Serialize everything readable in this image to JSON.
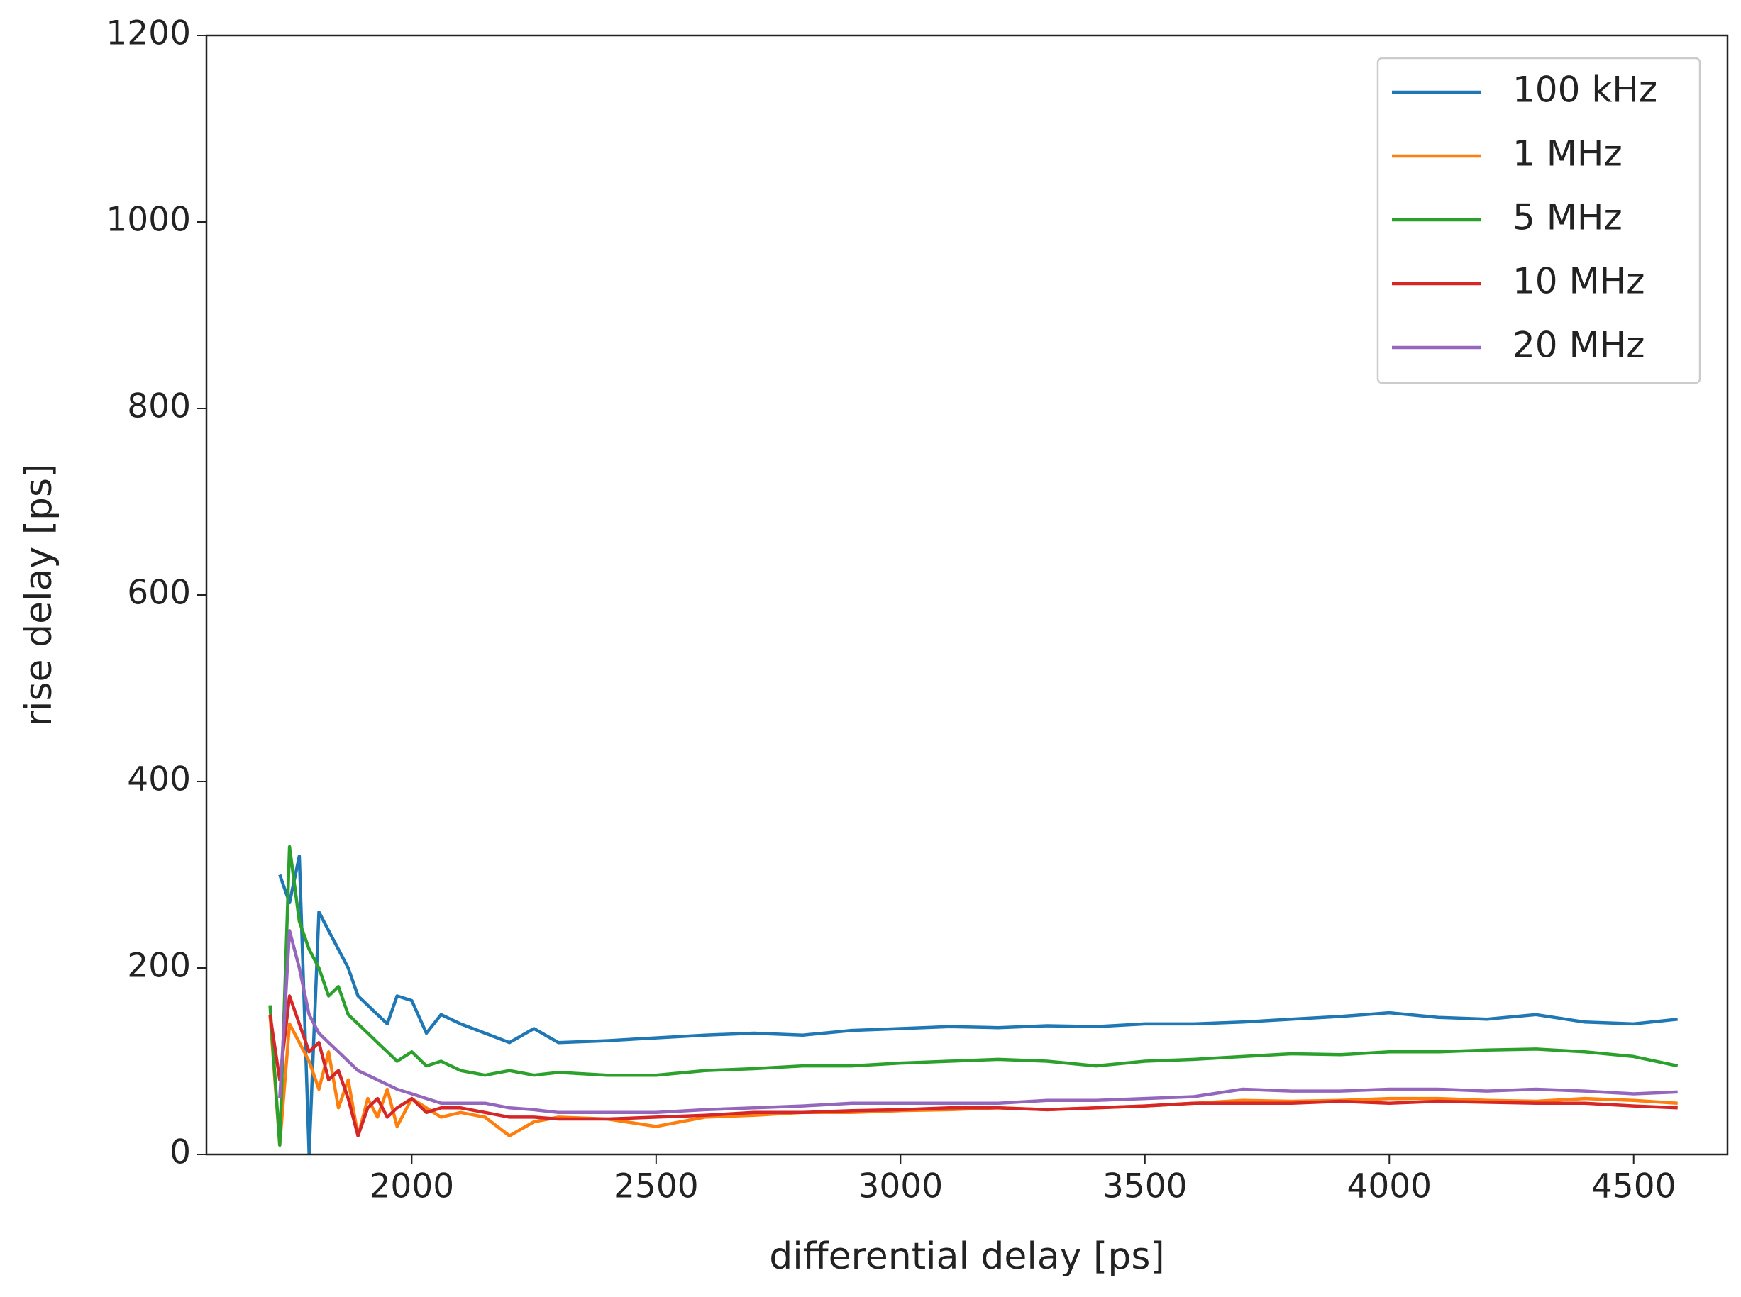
{
  "chart_data": {
    "type": "line",
    "xlabel": "differential delay [ps]",
    "ylabel": "rise delay [ps]",
    "x": [
      1710,
      1730,
      1750,
      1770,
      1790,
      1810,
      1830,
      1850,
      1870,
      1890,
      1910,
      1930,
      1950,
      1970,
      2000,
      2030,
      2060,
      2100,
      2150,
      2200,
      2250,
      2300,
      2400,
      2500,
      2600,
      2700,
      2800,
      2900,
      3000,
      3100,
      3200,
      3300,
      3400,
      3500,
      3600,
      3700,
      3800,
      3900,
      4000,
      4100,
      4200,
      4300,
      4400,
      4500,
      4590
    ],
    "series": [
      {
        "name": "100 kHz",
        "color": "#1f77b4",
        "values": [
          null,
          300,
          270,
          320,
          0,
          260,
          240,
          220,
          200,
          170,
          160,
          150,
          140,
          170,
          165,
          130,
          150,
          140,
          130,
          120,
          135,
          120,
          122,
          125,
          128,
          130,
          128,
          133,
          135,
          137,
          136,
          138,
          137,
          140,
          140,
          142,
          145,
          148,
          152,
          147,
          145,
          150,
          142,
          140,
          145
        ]
      },
      {
        "name": "1 MHz",
        "color": "#ff7f0e",
        "values": [
          150,
          10,
          140,
          120,
          100,
          70,
          110,
          50,
          80,
          20,
          60,
          40,
          70,
          30,
          60,
          50,
          40,
          45,
          40,
          20,
          35,
          40,
          38,
          30,
          40,
          42,
          45,
          45,
          47,
          48,
          50,
          48,
          50,
          52,
          55,
          58,
          57,
          58,
          60,
          60,
          58,
          57,
          60,
          58,
          55
        ]
      },
      {
        "name": "5 MHz",
        "color": "#2ca02c",
        "values": [
          160,
          10,
          330,
          250,
          220,
          200,
          170,
          180,
          150,
          140,
          130,
          120,
          110,
          100,
          110,
          95,
          100,
          90,
          85,
          90,
          85,
          88,
          85,
          85,
          90,
          92,
          95,
          95,
          98,
          100,
          102,
          100,
          95,
          100,
          102,
          105,
          108,
          107,
          110,
          110,
          112,
          113,
          110,
          105,
          95
        ]
      },
      {
        "name": "10 MHz",
        "color": "#d62728",
        "values": [
          150,
          80,
          170,
          140,
          110,
          120,
          80,
          90,
          60,
          20,
          50,
          60,
          40,
          50,
          60,
          45,
          50,
          50,
          45,
          40,
          40,
          38,
          38,
          40,
          42,
          45,
          45,
          47,
          48,
          50,
          50,
          48,
          50,
          52,
          55,
          55,
          55,
          57,
          55,
          57,
          56,
          55,
          55,
          52,
          50
        ]
      },
      {
        "name": "20 MHz",
        "color": "#9467bd",
        "values": [
          null,
          60,
          240,
          200,
          150,
          130,
          120,
          110,
          100,
          90,
          85,
          80,
          75,
          70,
          65,
          60,
          55,
          55,
          55,
          50,
          48,
          45,
          45,
          45,
          48,
          50,
          52,
          55,
          55,
          55,
          55,
          58,
          58,
          60,
          62,
          70,
          68,
          68,
          70,
          70,
          68,
          70,
          68,
          65,
          67
        ]
      }
    ],
    "xlim": [
      1580,
      4692
    ],
    "ylim": [
      0,
      1200
    ],
    "xticks": [
      2000,
      2500,
      3000,
      3500,
      4000,
      4500
    ],
    "yticks": [
      0,
      200,
      400,
      600,
      800,
      1000,
      1200
    ],
    "legend": "upper right"
  }
}
